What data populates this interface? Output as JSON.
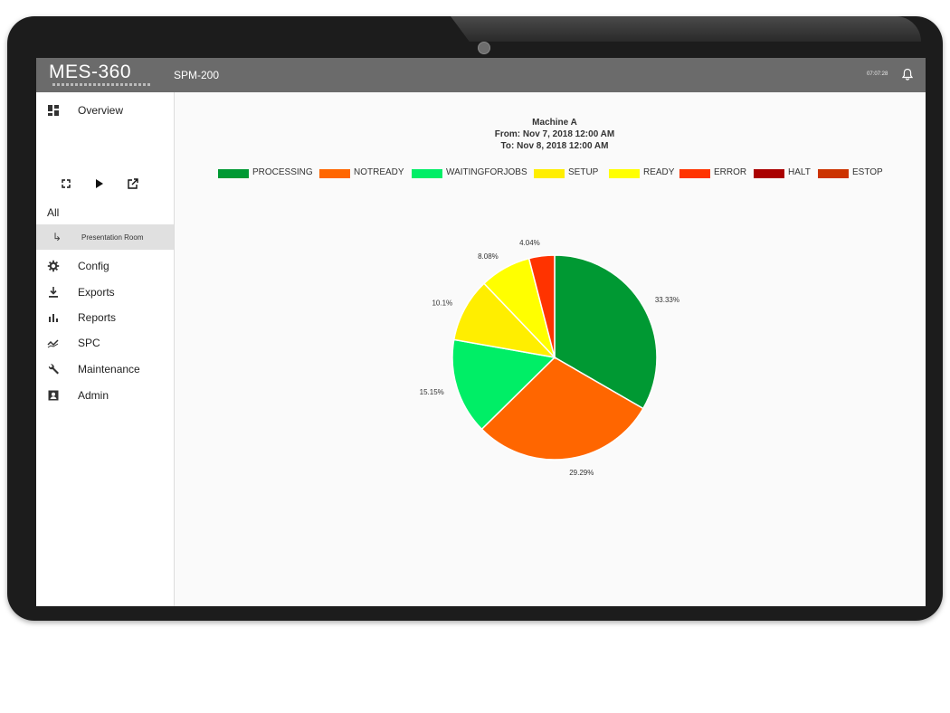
{
  "app": {
    "logo": "MES-360",
    "page_title": "SPM-200",
    "clock": "07:07:28"
  },
  "sidebar": {
    "items": [
      {
        "label": "Overview",
        "icon": "dashboard-icon"
      },
      {
        "label": "Config",
        "icon": "gear-icon"
      },
      {
        "label": "Exports",
        "icon": "download-icon"
      },
      {
        "label": "Reports",
        "icon": "bar-chart-icon"
      },
      {
        "label": "SPC",
        "icon": "trend-icon"
      },
      {
        "label": "Maintenance",
        "icon": "wrench-icon"
      },
      {
        "label": "Admin",
        "icon": "admin-icon"
      }
    ],
    "controls": [
      "fullscreen-icon",
      "play-icon",
      "open-external-icon"
    ],
    "group_label": "All",
    "selected_item": "Presentation Room"
  },
  "chart_data": {
    "type": "pie",
    "title": [
      "Machine A",
      "From: Nov 7, 2018 12:00 AM",
      "To: Nov 8, 2018 12:00 AM"
    ],
    "legend": [
      {
        "name": "PROCESSING",
        "color": "#009933"
      },
      {
        "name": "NOTREADY",
        "color": "#ff6600"
      },
      {
        "name": "WAITINGFORJOBS",
        "color": "#00ee66"
      },
      {
        "name": "SETUP",
        "color": "#ffee00"
      },
      {
        "name": "READY",
        "color": "#ffff00"
      },
      {
        "name": "ERROR",
        "color": "#ff3300"
      },
      {
        "name": "HALT",
        "color": "#aa0000"
      },
      {
        "name": "ESTOP",
        "color": "#cc3300"
      }
    ],
    "slices": [
      {
        "name": "PROCESSING",
        "value": 33.33,
        "label": "33.33%",
        "color": "#009933"
      },
      {
        "name": "NOTREADY",
        "value": 29.29,
        "label": "29.29%",
        "color": "#ff6600"
      },
      {
        "name": "WAITINGFORJOBS",
        "value": 15.15,
        "label": "15.15%",
        "color": "#00ee66"
      },
      {
        "name": "SETUP",
        "value": 10.1,
        "label": "10.1%",
        "color": "#ffee00"
      },
      {
        "name": "READY",
        "value": 8.08,
        "label": "8.08%",
        "color": "#ffff00"
      },
      {
        "name": "ERROR",
        "value": 4.04,
        "label": "4.04%",
        "color": "#ff3300"
      }
    ]
  }
}
